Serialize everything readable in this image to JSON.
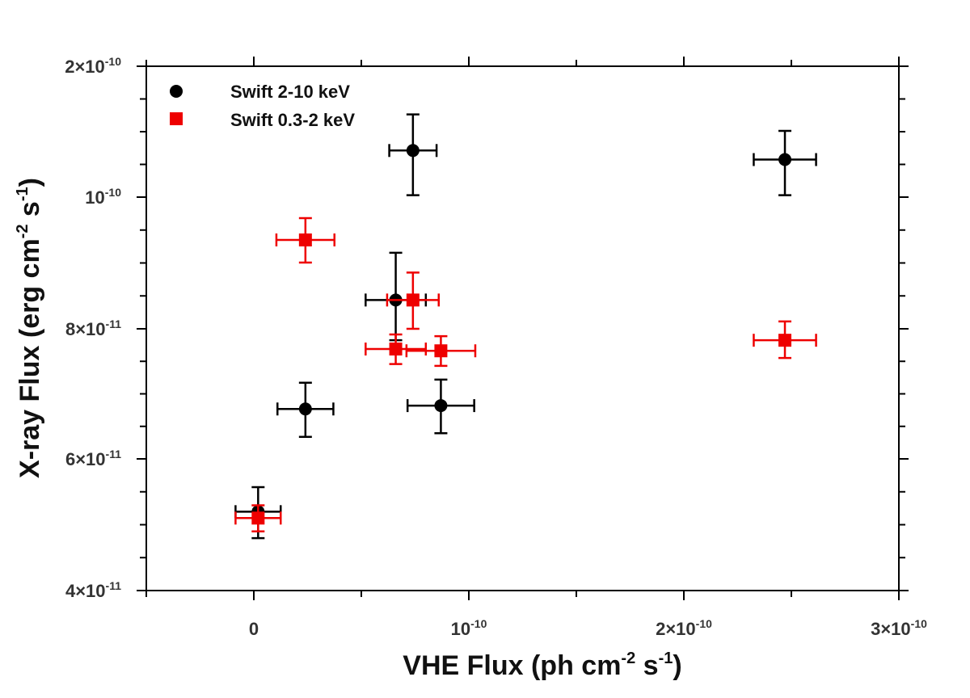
{
  "chart_data": {
    "type": "scatter",
    "xlabel_main": "VHE Flux (ph cm",
    "xlabel_sup1": "-2",
    "xlabel_mid": " s",
    "xlabel_sup2": "-1",
    "xlabel_end": ")",
    "ylabel_main": "X-ray Flux (erg cm",
    "ylabel_sup1": "-2",
    "ylabel_mid": " s",
    "ylabel_sup2": "-1",
    "ylabel_end": ")",
    "xlim": [
      -5e-11,
      3e-10
    ],
    "ylim": [
      4e-11,
      2e-10
    ],
    "x_ticks": [
      {
        "value": 0,
        "base": "0",
        "exp": ""
      },
      {
        "value": 1e-10,
        "base": "10",
        "exp": "-10"
      },
      {
        "value": 2e-10,
        "base": "2×10",
        "exp": "-10"
      },
      {
        "value": 3e-10,
        "base": "3×10",
        "exp": "-10"
      }
    ],
    "y_ticks": [
      {
        "value": 4e-11,
        "base": "4×10",
        "exp": "-11"
      },
      {
        "value": 6e-11,
        "base": "6×10",
        "exp": "-11"
      },
      {
        "value": 8e-11,
        "base": "8×10",
        "exp": "-11"
      },
      {
        "value": 1e-10,
        "base": "10",
        "exp": "-10"
      },
      {
        "value": 2e-10,
        "base": "2×10",
        "exp": "-10"
      }
    ],
    "series": [
      {
        "name": "Swift 2-10 keV",
        "marker": "circle",
        "color": "#000000",
        "points": [
          {
            "x": 7.4e-11,
            "y": 1.28e-10,
            "xerr": 1.1e-11,
            "ylo": 1.01e-10,
            "yhi": 1.55e-10
          },
          {
            "x": 2.47e-10,
            "y": 1.22e-10,
            "xerr": 1.45e-11,
            "ylo": 1.01e-10,
            "yhi": 1.42e-10
          },
          {
            "x": 6.6e-11,
            "y": 8.4e-11,
            "xerr": 1.4e-11,
            "ylo": 7.8e-11,
            "yhi": 9.1e-11
          },
          {
            "x": 2.4e-11,
            "y": 6.7e-11,
            "xerr": 1.3e-11,
            "ylo": 6.3e-11,
            "yhi": 7.1e-11
          },
          {
            "x": 8.7e-11,
            "y": 6.75e-11,
            "xerr": 1.55e-11,
            "ylo": 6.35e-11,
            "yhi": 7.15e-11
          },
          {
            "x": 2e-12,
            "y": 5.1e-11,
            "xerr": 1.05e-11,
            "ylo": 4.7e-11,
            "yhi": 5.5e-11
          }
        ]
      },
      {
        "name": "Swift 0.3-2 keV",
        "marker": "square",
        "color": "#ee0000",
        "points": [
          {
            "x": 2.4e-11,
            "y": 9.3e-11,
            "xerr": 1.35e-11,
            "ylo": 8.95e-11,
            "yhi": 9.65e-11
          },
          {
            "x": 7.4e-11,
            "y": 8.4e-11,
            "xerr": 1.2e-11,
            "ylo": 8e-11,
            "yhi": 8.8e-11
          },
          {
            "x": 6.6e-11,
            "y": 7.65e-11,
            "xerr": 1.4e-11,
            "ylo": 7.4e-11,
            "yhi": 7.9e-11
          },
          {
            "x": 8.7e-11,
            "y": 7.62e-11,
            "xerr": 1.6e-11,
            "ylo": 7.37e-11,
            "yhi": 7.87e-11
          },
          {
            "x": 2.47e-10,
            "y": 7.8e-11,
            "xerr": 1.45e-11,
            "ylo": 7.5e-11,
            "yhi": 8.1e-11
          },
          {
            "x": 2e-12,
            "y": 5e-11,
            "xerr": 1.05e-11,
            "ylo": 4.8e-11,
            "yhi": 5.2e-11
          }
        ]
      }
    ]
  }
}
